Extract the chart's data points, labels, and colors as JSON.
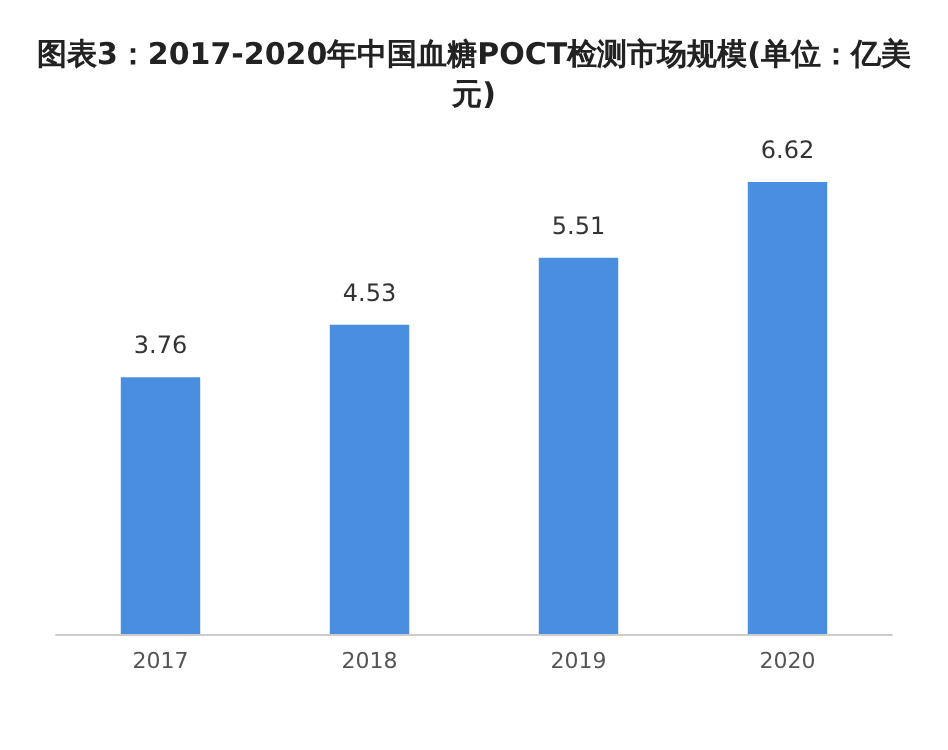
{
  "chart_data": {
    "type": "bar",
    "title": "图表3：2017-2020年中国血糖POCT检测市场规模(单位：亿美元)",
    "categories": [
      "2017",
      "2018",
      "2019",
      "2020"
    ],
    "values": [
      3.76,
      4.53,
      5.51,
      6.62
    ],
    "color": "#4a8ee0",
    "data_labels": true,
    "tick_labels": "x"
  }
}
